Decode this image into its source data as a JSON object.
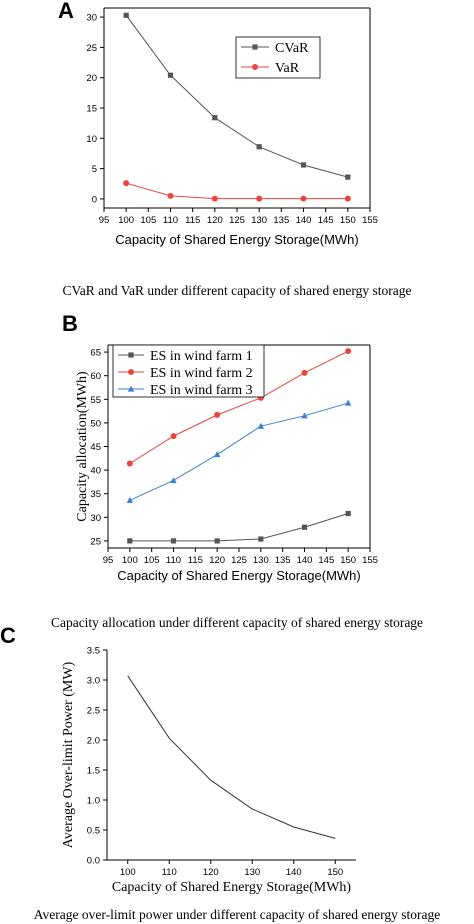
{
  "panels": {
    "A": {
      "letter": "A",
      "caption": "CVaR and VaR under different capacity of shared energy storage"
    },
    "B": {
      "letter": "B",
      "caption": "Capacity allocation under different capacity of shared energy storage"
    },
    "C": {
      "letter": "C",
      "caption": "Average over-limit power under different capacity of shared energy storage"
    }
  },
  "chart_data": [
    {
      "id": "A",
      "type": "line",
      "x": [
        100,
        110,
        120,
        130,
        140,
        150
      ],
      "series": [
        {
          "name": "CVaR",
          "values": [
            30.3,
            20.4,
            13.4,
            8.6,
            5.6,
            3.6
          ],
          "color": "#555555",
          "marker": "square"
        },
        {
          "name": "VaR",
          "values": [
            2.6,
            0.5,
            0.05,
            0.05,
            0.05,
            0.05
          ],
          "color": "#e8453c",
          "marker": "circle"
        }
      ],
      "xlabel": "Capacity of Shared Energy Storage(MWh)",
      "ylabel": "",
      "xlim": [
        95,
        155
      ],
      "ylim": [
        -1.5,
        31.5
      ],
      "xticks": [
        95,
        100,
        105,
        110,
        115,
        120,
        125,
        130,
        135,
        140,
        145,
        150,
        155
      ],
      "yticks": [
        0,
        5,
        10,
        15,
        20,
        25,
        30
      ],
      "legend": "upper-right"
    },
    {
      "id": "B",
      "type": "line",
      "x": [
        100,
        110,
        120,
        130,
        140,
        150
      ],
      "series": [
        {
          "name": "ES in wind farm 1",
          "values": [
            25.0,
            25.0,
            25.0,
            25.4,
            27.9,
            30.8
          ],
          "color": "#555555",
          "marker": "square"
        },
        {
          "name": "ES in wind farm 2",
          "values": [
            41.4,
            47.2,
            51.7,
            55.3,
            60.6,
            65.2
          ],
          "color": "#e8453c",
          "marker": "circle"
        },
        {
          "name": "ES in wind farm 3",
          "values": [
            33.6,
            37.8,
            43.3,
            49.3,
            51.5,
            54.2
          ],
          "color": "#3d7fcf",
          "marker": "triangle"
        }
      ],
      "xlabel": "Capacity of Shared Energy Storage(MWh)",
      "ylabel": "Capacity allocation(MWh)",
      "xlim": [
        95,
        155
      ],
      "ylim": [
        23.5,
        66.5
      ],
      "xticks": [
        95,
        100,
        105,
        110,
        115,
        120,
        125,
        130,
        135,
        140,
        145,
        150,
        155
      ],
      "yticks": [
        25,
        30,
        35,
        40,
        45,
        50,
        55,
        60,
        65
      ],
      "legend": "upper-left"
    },
    {
      "id": "C",
      "type": "line",
      "x": [
        100,
        110,
        120,
        130,
        140,
        150
      ],
      "series": [
        {
          "values": [
            3.07,
            2.03,
            1.33,
            0.85,
            0.55,
            0.36
          ],
          "color": "#333333",
          "marker": "none"
        }
      ],
      "xlabel": "Capacity of Shared Energy Storage(MWh)",
      "ylabel": "Average Over-limit Power (MW)",
      "xlim": [
        95,
        155
      ],
      "ylim": [
        0,
        3.5
      ],
      "xticks": [
        100,
        110,
        120,
        130,
        140,
        150
      ],
      "yticks": [
        0.0,
        0.5,
        1.0,
        1.5,
        2.0,
        2.5,
        3.0,
        3.5
      ],
      "legend": "none"
    }
  ]
}
